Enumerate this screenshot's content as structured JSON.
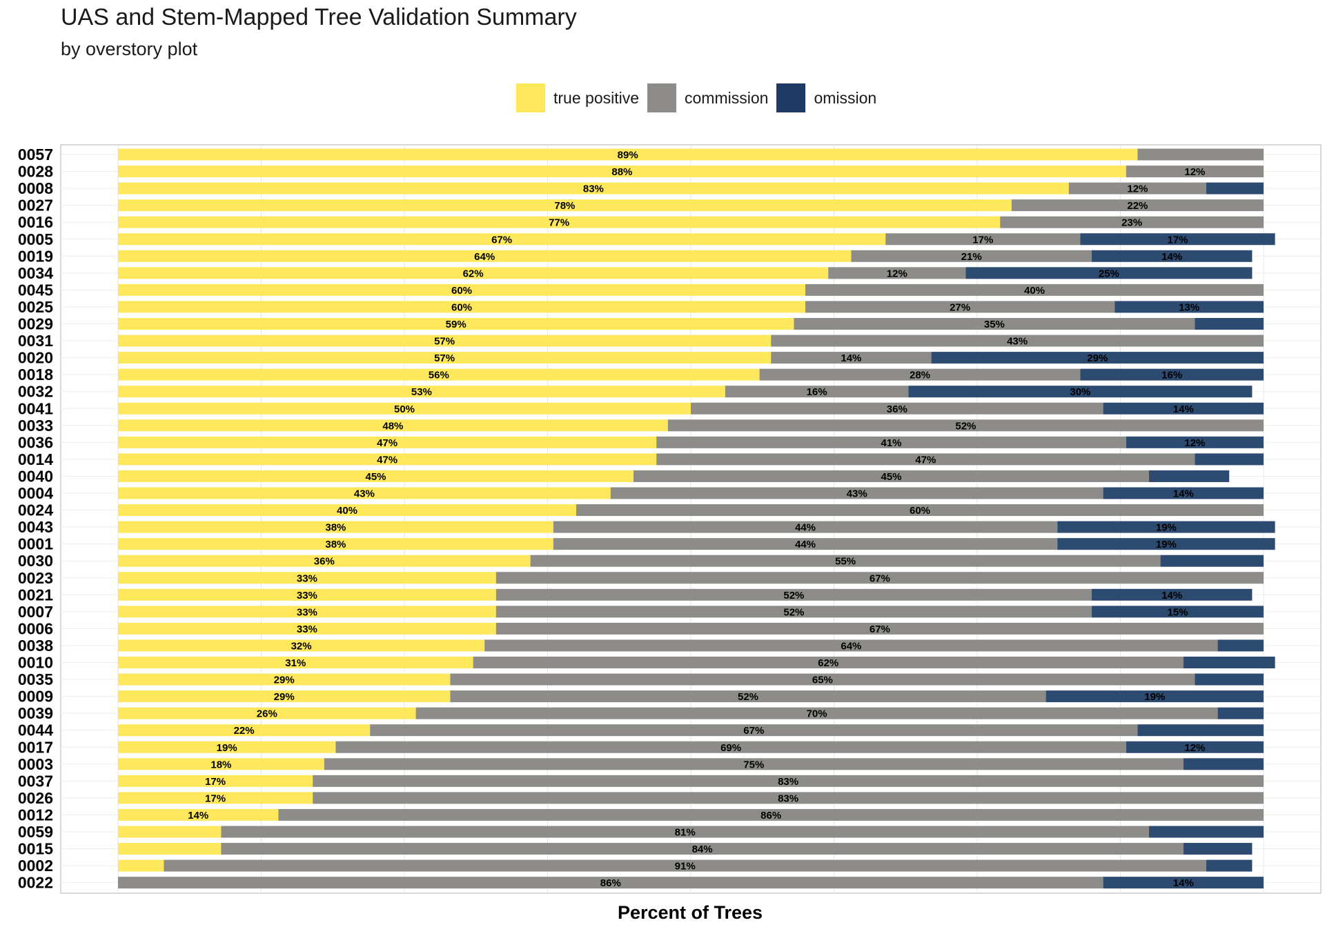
{
  "chart_data": {
    "type": "bar",
    "orientation": "horizontal",
    "stacked": true,
    "title": "UAS and Stem-Mapped Tree Validation Summary",
    "subtitle": "by overstory plot",
    "xlabel": "Percent of Trees",
    "ylabel": "",
    "legend_position": "top",
    "grid": true,
    "xlim": [
      0,
      100
    ],
    "categories": [
      "0057",
      "0028",
      "0008",
      "0027",
      "0016",
      "0005",
      "0019",
      "0034",
      "0045",
      "0025",
      "0029",
      "0031",
      "0020",
      "0018",
      "0032",
      "0041",
      "0033",
      "0036",
      "0014",
      "0040",
      "0004",
      "0024",
      "0043",
      "0001",
      "0030",
      "0023",
      "0021",
      "0007",
      "0006",
      "0038",
      "0010",
      "0035",
      "0009",
      "0039",
      "0044",
      "0017",
      "0003",
      "0037",
      "0026",
      "0012",
      "0059",
      "0015",
      "0002",
      "0022"
    ],
    "series": [
      {
        "name": "true positive",
        "color": "#FDE85B",
        "values": [
          89,
          88,
          83,
          78,
          77,
          67,
          64,
          62,
          60,
          60,
          59,
          57,
          57,
          56,
          53,
          50,
          48,
          47,
          47,
          45,
          43,
          40,
          38,
          38,
          36,
          33,
          33,
          33,
          33,
          32,
          31,
          29,
          29,
          26,
          22,
          19,
          18,
          17,
          17,
          14,
          9,
          9,
          4,
          0
        ]
      },
      {
        "name": "commission",
        "color": "#8E8C89",
        "values": [
          11,
          12,
          12,
          22,
          23,
          17,
          21,
          12,
          40,
          27,
          35,
          43,
          14,
          28,
          16,
          36,
          52,
          41,
          47,
          45,
          43,
          60,
          44,
          44,
          55,
          67,
          52,
          52,
          67,
          64,
          62,
          65,
          52,
          70,
          67,
          69,
          75,
          83,
          83,
          86,
          81,
          84,
          91,
          86
        ]
      },
      {
        "name": "omission",
        "color": "#2D4A70",
        "values": [
          0,
          0,
          5,
          0,
          0,
          17,
          14,
          25,
          0,
          13,
          6,
          0,
          29,
          16,
          30,
          14,
          0,
          12,
          6,
          7,
          14,
          0,
          19,
          19,
          9,
          0,
          14,
          15,
          0,
          4,
          8,
          6,
          19,
          4,
          11,
          12,
          7,
          0,
          0,
          0,
          10,
          6,
          4,
          14
        ]
      }
    ],
    "label_threshold": 12
  }
}
